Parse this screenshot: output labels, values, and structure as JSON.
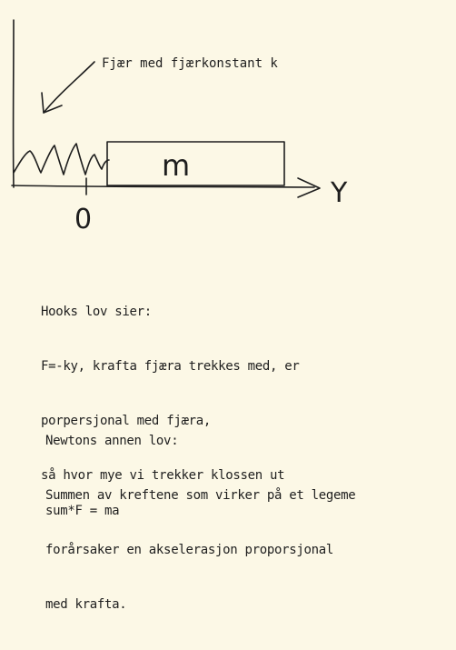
{
  "diagram": {
    "spring_label": "Fjær med fjærkonstant k",
    "mass_label": "m",
    "axis_label": "Y",
    "origin_label": "0"
  },
  "hooke": {
    "lines": [
      "Hooks lov sier:",
      "F=-ky, krafta fjæra trekkes med, er",
      "porpersjonal med fjæra,",
      "så hvor mye vi trekker klossen ut"
    ]
  },
  "newton": {
    "lines": [
      "Newtons annen lov:",
      "Summen av kreftene som virker på et legeme",
      "forårsaker en akselerasjon proporsjonal",
      "med krafta."
    ]
  },
  "formula": "sum*F = ma"
}
